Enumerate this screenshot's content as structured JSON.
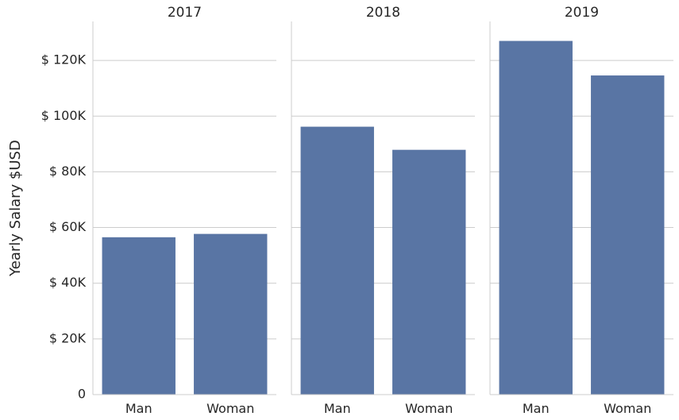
{
  "chart_data": {
    "type": "bar",
    "layout": "facet-columns",
    "ylabel": "Yearly Salary $USD",
    "ylim": [
      0,
      134000
    ],
    "yticks": [
      0,
      20000,
      40000,
      60000,
      80000,
      100000,
      120000
    ],
    "ytick_labels": [
      "0",
      "$ 20K",
      "$ 40K",
      "$ 60K",
      "$ 80K",
      "$ 100K",
      "$ 120K"
    ],
    "grid": "horizontal",
    "bar_color": "#5975a4",
    "categories": [
      "Man",
      "Woman"
    ],
    "panels": [
      {
        "title": "2017",
        "values": [
          56500,
          57700
        ]
      },
      {
        "title": "2018",
        "values": [
          96200,
          87900
        ]
      },
      {
        "title": "2019",
        "values": [
          127000,
          114600
        ]
      }
    ]
  }
}
